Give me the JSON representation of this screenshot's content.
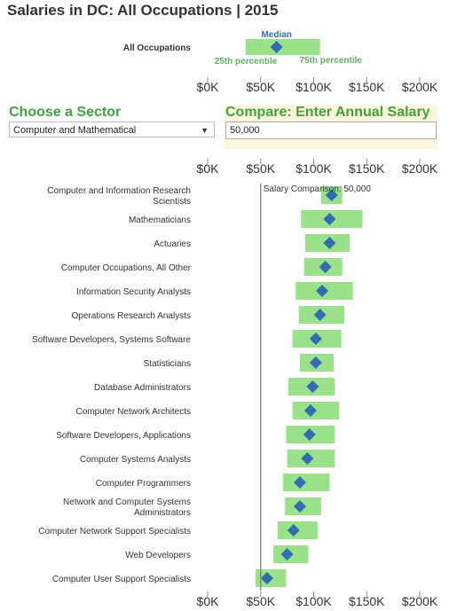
{
  "title": "Salaries in DC: All Occupations | 2015",
  "sector": {
    "label": "Choose a Sector",
    "selected": "Computer and Mathematical"
  },
  "compare": {
    "label": "Compare: Enter Annual Salary",
    "value": "50,000"
  },
  "colors": {
    "bar": "#99e28a",
    "marker": "#2f6db4",
    "title": "#333333",
    "heading": "#3aa63a",
    "annotation_label": "#5bb45b",
    "median_label": "#2f6db4",
    "reference_line": "#777777"
  },
  "chart_data": [
    {
      "type": "bar",
      "subtype": "range-with-median",
      "categories": [
        "All Occupations"
      ],
      "series": [
        {
          "name": "25th percentile",
          "values": [
            36000
          ]
        },
        {
          "name": "Median",
          "values": [
            65000
          ]
        },
        {
          "name": "75th percentile",
          "values": [
            106000
          ]
        }
      ],
      "annotations": {
        "median": "Median",
        "p25": "25th percentile",
        "p75": "75th percentile"
      },
      "xticks": [
        "$0K",
        "$50K",
        "$100K",
        "$150K",
        "$200K"
      ],
      "xlim": [
        0,
        200000
      ]
    },
    {
      "type": "bar",
      "subtype": "range-with-median",
      "categories": [
        "Computer and Information Research Scientists",
        "Mathematicians",
        "Actuaries",
        "Computer Occupations, All Other",
        "Information Security Analysts",
        "Operations Research Analysts",
        "Software Developers, Systems Software",
        "Statisticians",
        "Database Administrators",
        "Computer Network Architects",
        "Software Developers, Applications",
        "Computer Systems Analysts",
        "Computer Programmers",
        "Network and Computer Systems Administrators",
        "Computer Network Support Specialists",
        "Web Developers",
        "Computer User Support Specialists"
      ],
      "series": [
        {
          "name": "25th percentile",
          "values": [
            107000,
            88000,
            92000,
            91000,
            83000,
            86000,
            80000,
            87000,
            76000,
            80000,
            74000,
            75000,
            71000,
            73000,
            66000,
            62000,
            45000
          ]
        },
        {
          "name": "Median",
          "values": [
            117000,
            115000,
            115000,
            111000,
            108000,
            106000,
            102000,
            102000,
            99000,
            97000,
            96000,
            94000,
            87000,
            87000,
            81000,
            75000,
            56000
          ]
        },
        {
          "name": "75th percentile",
          "values": [
            127000,
            146000,
            134000,
            127000,
            137000,
            129000,
            126000,
            119000,
            120000,
            124000,
            120000,
            120000,
            115000,
            107000,
            104000,
            95000,
            74000
          ]
        }
      ],
      "reference_line": {
        "value": 50000,
        "label": "Salary Comparison: 50,000"
      },
      "xticks": [
        "$0K",
        "$50K",
        "$100K",
        "$150K",
        "$200K"
      ],
      "xlim": [
        0,
        200000
      ]
    }
  ]
}
